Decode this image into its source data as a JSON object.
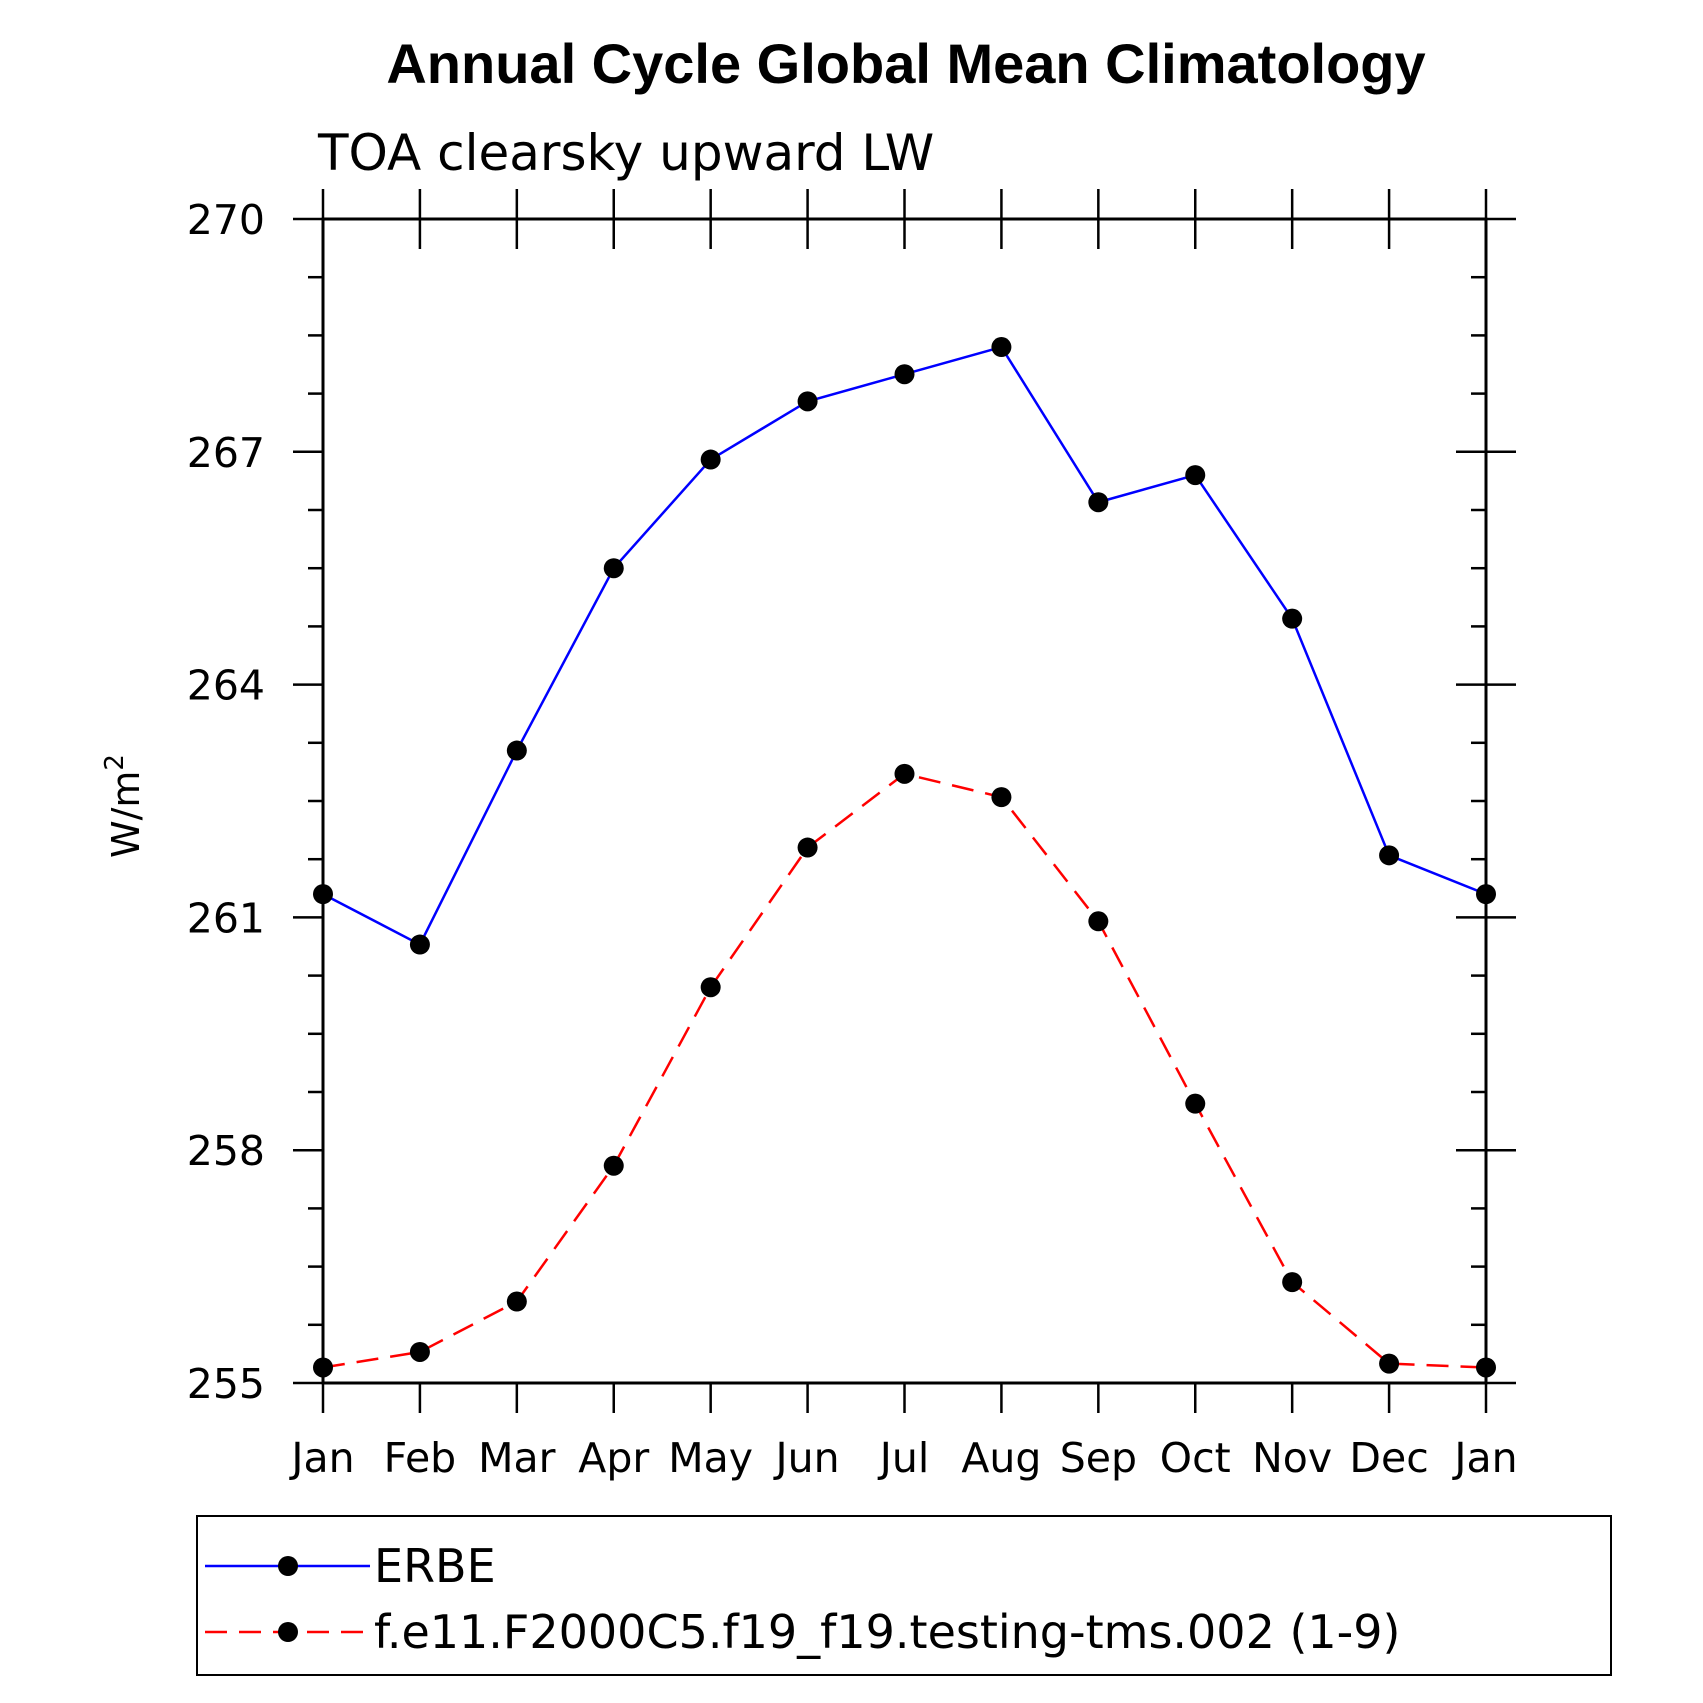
{
  "chart_data": {
    "type": "line",
    "title": "Annual Cycle Global Mean Climatology",
    "subtitle": "TOA clearsky upward LW",
    "ylabel": "W/m",
    "ylabel_sup": "2",
    "xlabel": "",
    "categories": [
      "Jan",
      "Feb",
      "Mar",
      "Apr",
      "May",
      "Jun",
      "Jul",
      "Aug",
      "Sep",
      "Oct",
      "Nov",
      "Dec",
      "Jan"
    ],
    "ylim": [
      255,
      270
    ],
    "yticks": [
      255,
      258,
      261,
      264,
      267,
      270
    ],
    "grid": false,
    "legend_position": "bottom",
    "series": [
      {
        "name": "ERBE",
        "color": "#0000ff",
        "line_style": "solid",
        "marker": "filled-circle",
        "values": [
          261.3,
          260.65,
          263.15,
          265.5,
          266.9,
          267.65,
          268.0,
          268.35,
          266.35,
          266.7,
          264.85,
          261.8,
          261.3
        ]
      },
      {
        "name": "f.e11.F2000C5.f19_f19.testing-tms.002 (1-9)",
        "color": "#ff0000",
        "line_style": "dashed",
        "marker": "filled-circle",
        "values": [
          255.2,
          255.4,
          256.05,
          257.8,
          260.1,
          261.9,
          262.85,
          262.55,
          260.95,
          258.6,
          256.3,
          255.25,
          255.2
        ]
      }
    ]
  }
}
